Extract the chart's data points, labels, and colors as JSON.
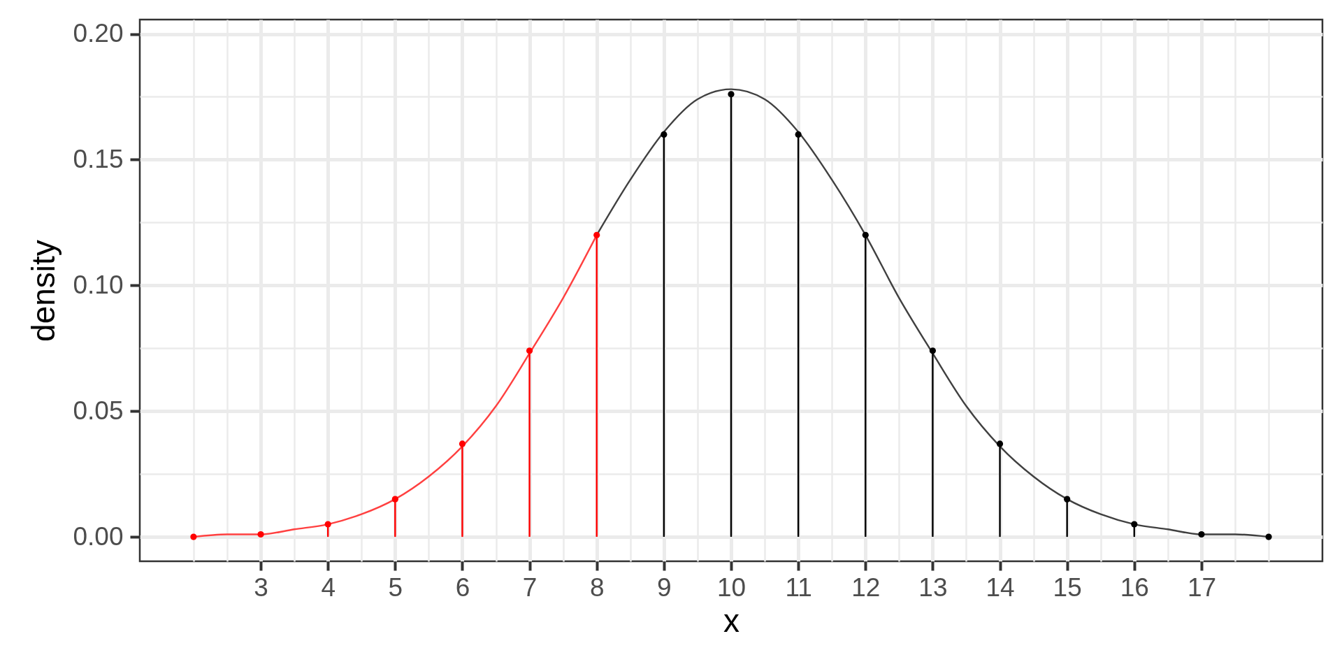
{
  "chart_data": {
    "type": "line",
    "xlabel": "x",
    "ylabel": "density",
    "xlim": [
      1.2,
      18.8
    ],
    "ylim": [
      -0.0097,
      0.2057
    ],
    "xticks": [
      3,
      4,
      5,
      6,
      7,
      8,
      9,
      10,
      11,
      12,
      13,
      14,
      15,
      16,
      17
    ],
    "yticks": [
      {
        "value": 0,
        "label": "0.00"
      },
      0.05,
      {
        "value": 0.1,
        "label": "0.10"
      },
      0.15,
      {
        "value": 0.2,
        "label": "0.20"
      }
    ],
    "grid": true,
    "series": [
      {
        "color": "#ff4040",
        "x": [
          2,
          2.5,
          3,
          3.5,
          4,
          4.5,
          5,
          5.5,
          6,
          6.5,
          7,
          7.5,
          8
        ],
        "values": [
          0.0,
          0.001,
          0.001,
          0.003,
          0.005,
          0.009,
          0.015,
          0.024,
          0.036,
          0.052,
          0.073,
          0.095,
          0.12
        ]
      },
      {
        "color": "#404040",
        "x": [
          8,
          8.5,
          9,
          9.5,
          10,
          10.5,
          11,
          11.5,
          12,
          12.5,
          13,
          13.5,
          14,
          14.5,
          15,
          15.5,
          16,
          16.5,
          17,
          17.5,
          18
        ],
        "values": [
          0.12,
          0.142,
          0.161,
          0.174,
          0.178,
          0.174,
          0.161,
          0.142,
          0.12,
          0.095,
          0.073,
          0.052,
          0.036,
          0.024,
          0.015,
          0.009,
          0.005,
          0.003,
          0.001,
          0.001,
          0.0
        ]
      },
      {
        "type": "lollipop",
        "color": "#ff0000",
        "marker": "circle",
        "x": [
          2,
          3,
          4,
          5,
          6,
          7,
          8
        ],
        "values": [
          0.0,
          0.001,
          0.005,
          0.015,
          0.037,
          0.074,
          0.12
        ]
      },
      {
        "type": "lollipop",
        "color": "#000000",
        "marker": "circle",
        "x": [
          9,
          10,
          11,
          12,
          13,
          14,
          15,
          16,
          17,
          18
        ],
        "values": [
          0.16,
          0.176,
          0.16,
          0.12,
          0.074,
          0.037,
          0.015,
          0.005,
          0.001,
          0.0
        ]
      }
    ]
  }
}
